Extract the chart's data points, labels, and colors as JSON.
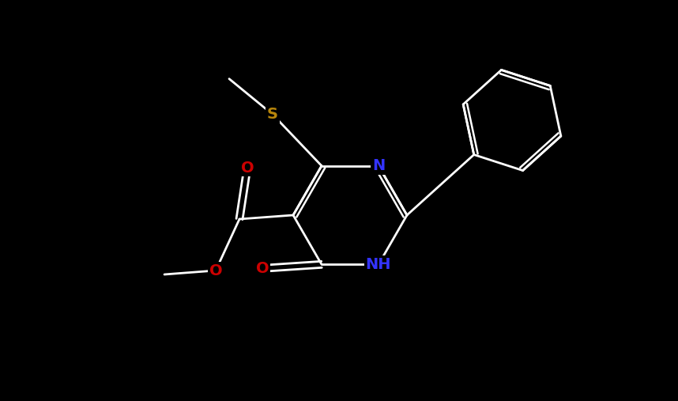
{
  "bg_color": "#000000",
  "bond_color": "#ffffff",
  "colors": {
    "N": "#3333ff",
    "O": "#cc0000",
    "S": "#b8860b",
    "C": "#ffffff"
  },
  "lw": 2.0,
  "font_size": 14
}
